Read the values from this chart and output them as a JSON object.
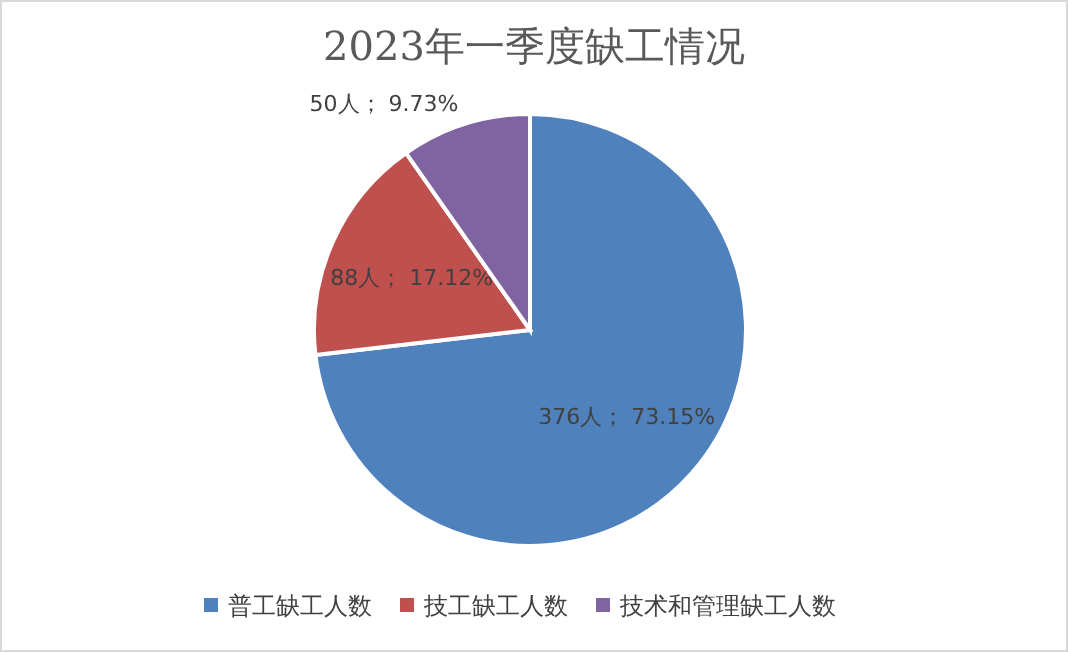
{
  "chart_data": {
    "type": "pie",
    "title": "2023年一季度缺工情况",
    "categories": [
      "普工缺工人数",
      "技工缺工人数",
      "技术和管理缺工人数"
    ],
    "values": [
      376,
      88,
      50
    ],
    "value_labels": [
      "376人； 73.15%",
      "88人； 17.12%",
      "50人； 9.73%"
    ],
    "colors": [
      "#4f81bd",
      "#c0504d",
      "#8064a2"
    ],
    "legend": "bottom"
  }
}
